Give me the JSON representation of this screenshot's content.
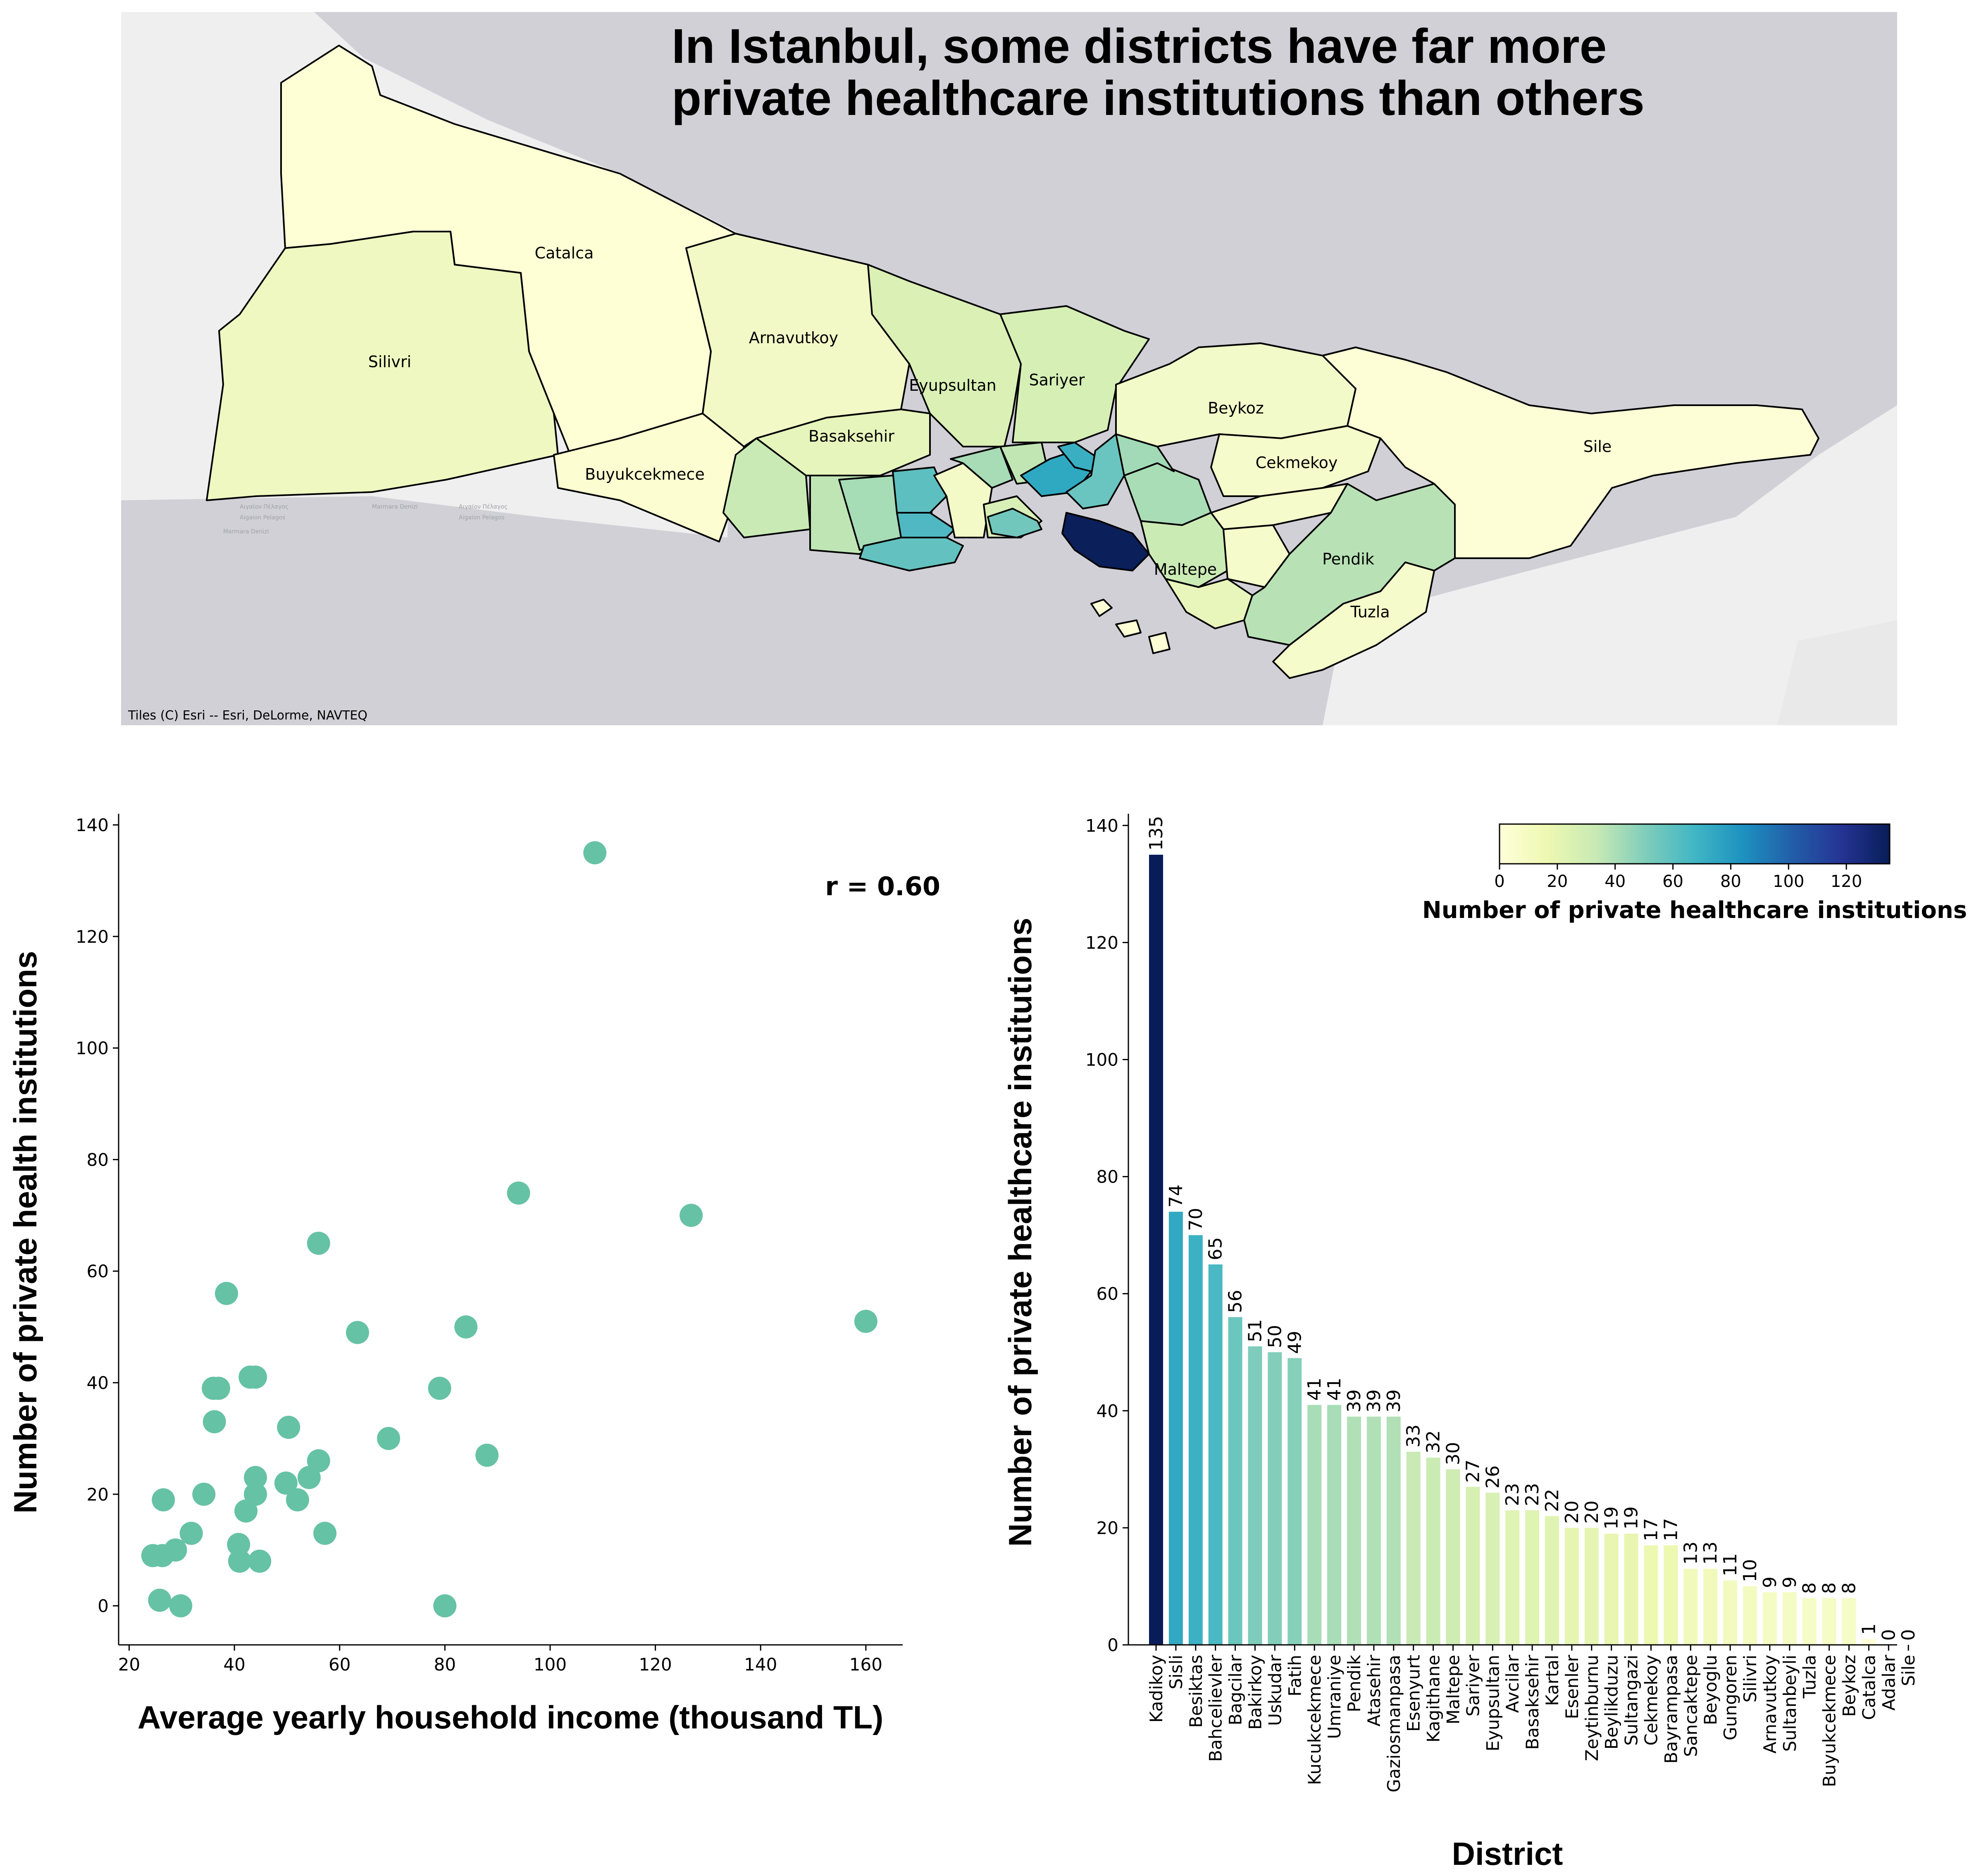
{
  "chart_data": [
    {
      "type": "choropleth-map",
      "title_lines": [
        "In Istanbul, some districts have far more",
        "private healthcare institutions than others"
      ],
      "attribution": "Tiles (C) Esri -- Esri, DeLorme, NAVTEQ",
      "sea_labels": [
        "Αιγαίον Πέλαγος",
        "Aigaion Pelagos",
        "Marmara Denizi",
        "Marmara Denizi",
        "Αιγαίον Πέλαγος",
        "Aigaion Pelagos"
      ],
      "district_labels": [
        "Catalca",
        "Silivri",
        "Arnavutkoy",
        "Eyupsultan",
        "Sariyer",
        "Beykoz",
        "Sile",
        "Cekmekoy",
        "Basaksehir",
        "Buyukcekmece",
        "Maltepe",
        "Pendik",
        "Tuzla"
      ]
    },
    {
      "type": "scatter",
      "xlabel": "Average yearly household income (thousand TL)",
      "ylabel": "Number of private health institutions",
      "annotation": "r = 0.60",
      "xlim": [
        18,
        167
      ],
      "ylim": [
        -7,
        142
      ],
      "xticks": [
        20,
        40,
        60,
        80,
        100,
        120,
        140,
        160
      ],
      "yticks": [
        0,
        20,
        40,
        60,
        80,
        100,
        120,
        140
      ],
      "color": "#66c2a4",
      "points": [
        {
          "x": 108.5,
          "y": 135
        },
        {
          "x": 94,
          "y": 74
        },
        {
          "x": 126.8,
          "y": 70
        },
        {
          "x": 56,
          "y": 65
        },
        {
          "x": 38.5,
          "y": 56
        },
        {
          "x": 160,
          "y": 51
        },
        {
          "x": 63.4,
          "y": 49
        },
        {
          "x": 84,
          "y": 50
        },
        {
          "x": 43,
          "y": 41
        },
        {
          "x": 44,
          "y": 41
        },
        {
          "x": 36,
          "y": 39
        },
        {
          "x": 37,
          "y": 39
        },
        {
          "x": 79,
          "y": 39
        },
        {
          "x": 36.2,
          "y": 33
        },
        {
          "x": 50.3,
          "y": 32
        },
        {
          "x": 69.3,
          "y": 30
        },
        {
          "x": 88,
          "y": 27
        },
        {
          "x": 56,
          "y": 26
        },
        {
          "x": 44,
          "y": 23
        },
        {
          "x": 54.2,
          "y": 23
        },
        {
          "x": 49.8,
          "y": 22
        },
        {
          "x": 34.2,
          "y": 20
        },
        {
          "x": 44,
          "y": 20
        },
        {
          "x": 26.5,
          "y": 19
        },
        {
          "x": 52,
          "y": 19
        },
        {
          "x": 42.2,
          "y": 17
        },
        {
          "x": 31.8,
          "y": 13
        },
        {
          "x": 57.2,
          "y": 13
        },
        {
          "x": 40.8,
          "y": 11
        },
        {
          "x": 28.8,
          "y": 10
        },
        {
          "x": 24.5,
          "y": 9
        },
        {
          "x": 26.3,
          "y": 9
        },
        {
          "x": 41,
          "y": 8
        },
        {
          "x": 44.8,
          "y": 8
        },
        {
          "x": 25.8,
          "y": 1
        },
        {
          "x": 29.8,
          "y": 0
        },
        {
          "x": 80,
          "y": 0
        }
      ]
    },
    {
      "type": "bar",
      "xlabel": "District",
      "ylabel": "Number of private healthcare institutions",
      "ylim": [
        0,
        142
      ],
      "yticks": [
        0,
        20,
        40,
        60,
        80,
        100,
        120,
        140
      ],
      "categories": [
        "Kadikoy",
        "Sisli",
        "Besiktas",
        "Bahcelievler",
        "Bagcilar",
        "Bakirkoy",
        "Uskudar",
        "Fatih",
        "Kucukcekmece",
        "Umraniye",
        "Pendik",
        "Atasehir",
        "Gaziosmanpasa",
        "Esenyurt",
        "Kagithane",
        "Maltepe",
        "Sariyer",
        "Eyupsultan",
        "Avcilar",
        "Basaksehir",
        "Kartal",
        "Esenler",
        "Zeytinburnu",
        "Beylikduzu",
        "Sultangazi",
        "Cekmekoy",
        "Bayrampasa",
        "Sancaktepe",
        "Beyoglu",
        "Gungoren",
        "Silivri",
        "Arnavutkoy",
        "Sultanbeyli",
        "Tuzla",
        "Buyukcekmece",
        "Beykoz",
        "Catalca",
        "Adalar",
        "Sile"
      ],
      "values": [
        135,
        74,
        70,
        65,
        56,
        51,
        50,
        49,
        41,
        41,
        39,
        39,
        39,
        33,
        32,
        30,
        27,
        26,
        23,
        23,
        22,
        20,
        20,
        19,
        19,
        17,
        17,
        13,
        13,
        11,
        10,
        9,
        9,
        8,
        8,
        8,
        1,
        0,
        0
      ],
      "colorbar": {
        "label": "Number of private healthcare institutions",
        "ticks": [
          0,
          20,
          40,
          60,
          80,
          100,
          120
        ],
        "range": [
          0,
          135
        ],
        "colormap": [
          "#ffffd9",
          "#edf8b1",
          "#c7e9b4",
          "#7fcdbb",
          "#41b6c4",
          "#1d91c0",
          "#225ea8",
          "#253494",
          "#081d58"
        ]
      }
    }
  ]
}
